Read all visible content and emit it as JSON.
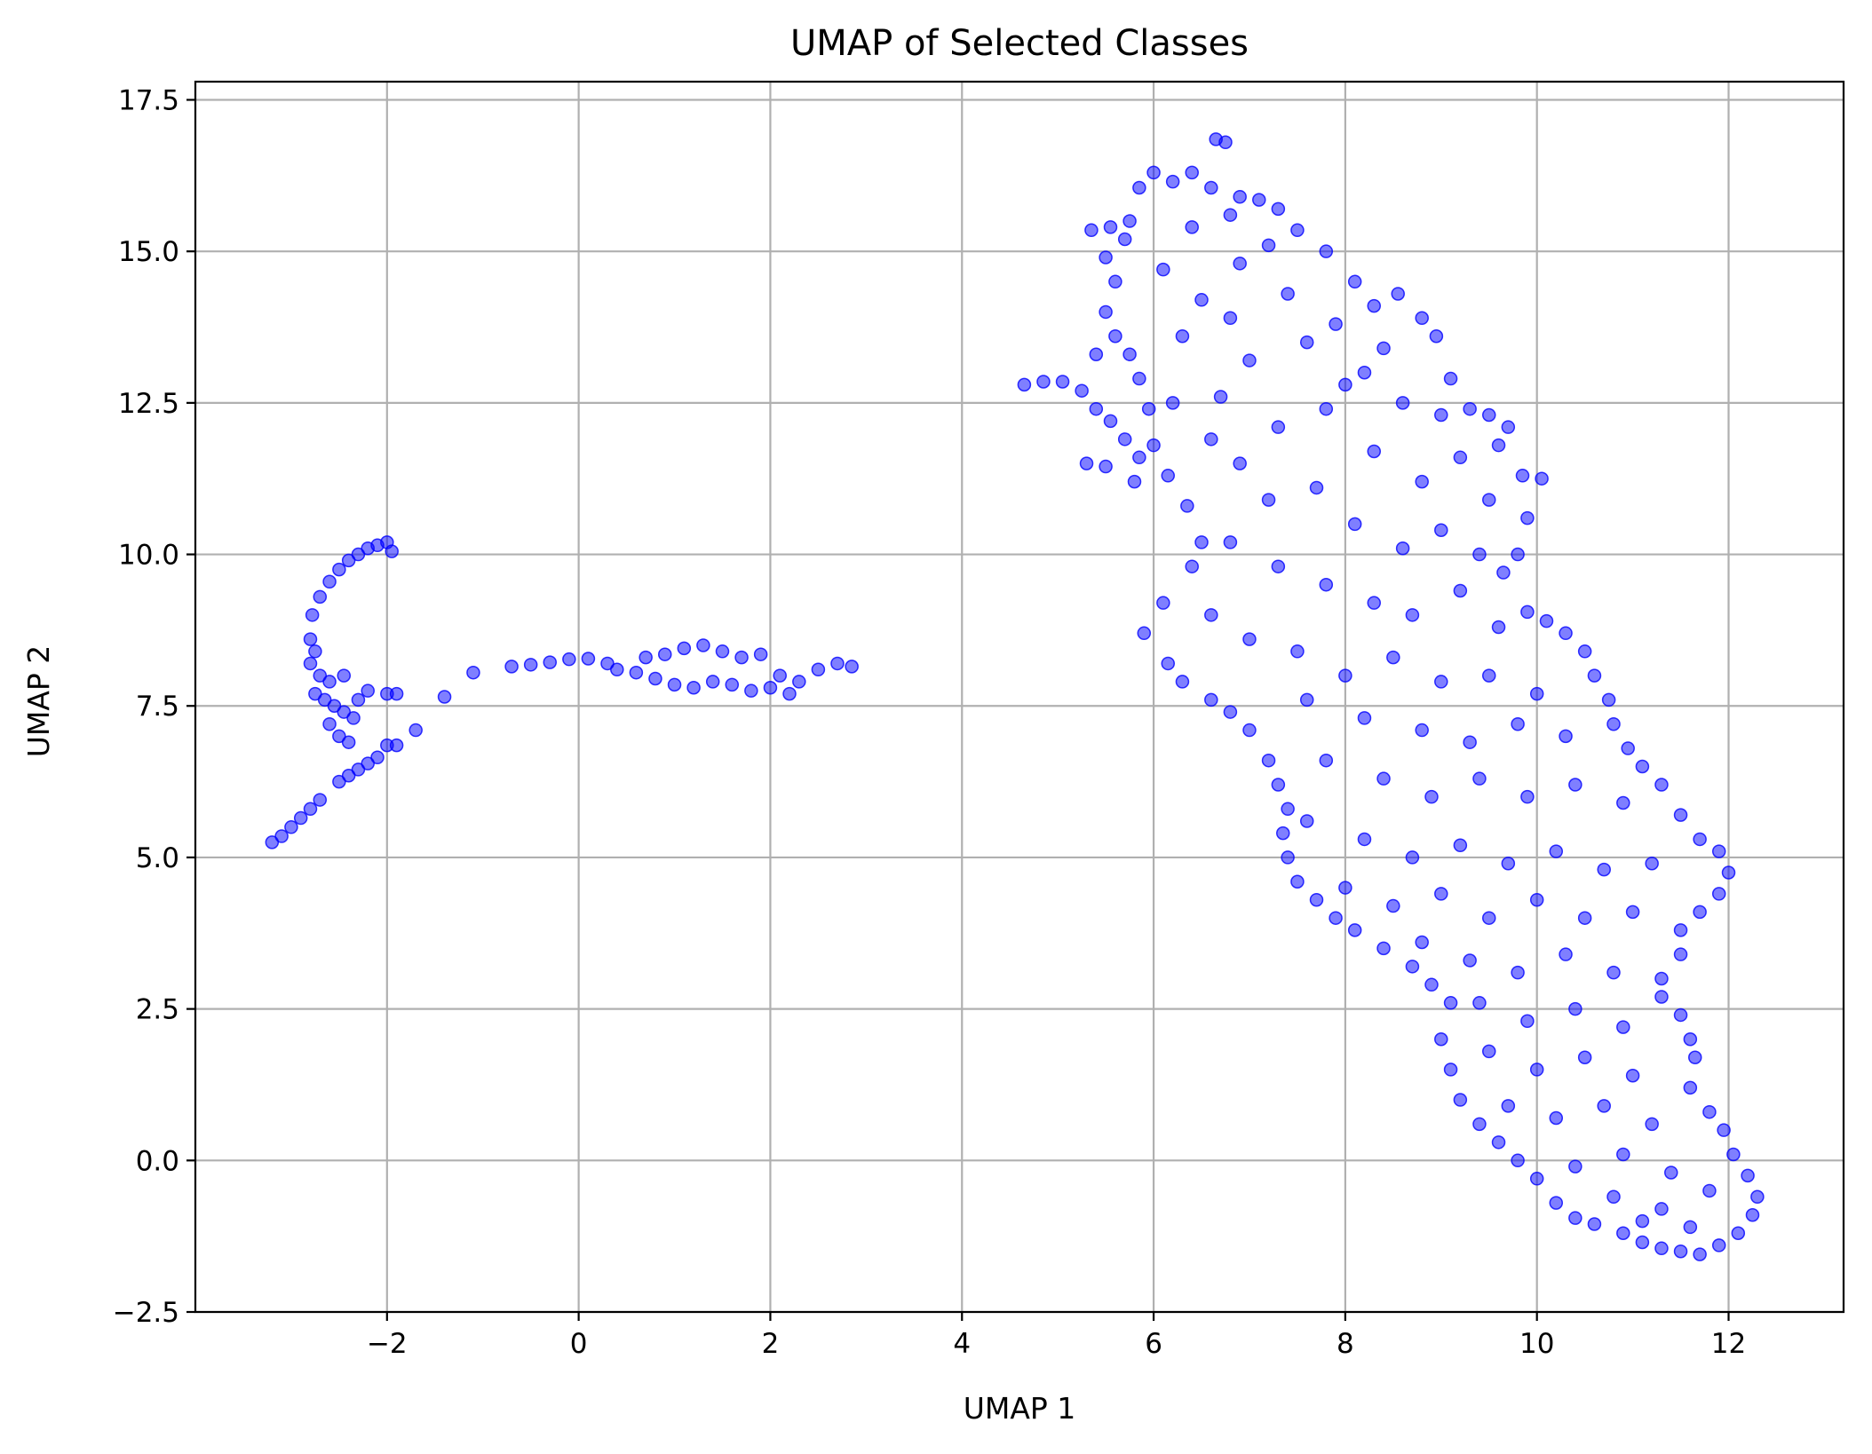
{
  "chart_data": {
    "type": "scatter",
    "title": "UMAP of Selected Classes",
    "xlabel": "UMAP 1",
    "ylabel": "UMAP 2",
    "xlim": [
      -4.0,
      13.2
    ],
    "ylim": [
      -2.5,
      17.8
    ],
    "xticks": [
      -2,
      0,
      2,
      4,
      6,
      8,
      10,
      12
    ],
    "xtick_labels": [
      "−2",
      "0",
      "2",
      "4",
      "6",
      "8",
      "10",
      "12"
    ],
    "yticks": [
      -2.5,
      0.0,
      2.5,
      5.0,
      7.5,
      10.0,
      12.5,
      15.0,
      17.5
    ],
    "ytick_labels": [
      "−2.5",
      "0.0",
      "2.5",
      "5.0",
      "7.5",
      "10.0",
      "12.5",
      "15.0",
      "17.5"
    ],
    "grid": true,
    "marker_color": "#0000ff",
    "marker_alpha": 0.5,
    "series": [
      {
        "points": [
          [
            -3.2,
            5.25
          ],
          [
            -3.1,
            5.35
          ],
          [
            -3.0,
            5.5
          ],
          [
            -2.9,
            5.65
          ],
          [
            -2.8,
            5.8
          ],
          [
            -2.7,
            5.95
          ],
          [
            -2.5,
            6.25
          ],
          [
            -2.4,
            6.35
          ],
          [
            -2.3,
            6.45
          ],
          [
            -2.2,
            6.55
          ],
          [
            -2.1,
            6.65
          ],
          [
            -2.0,
            6.85
          ],
          [
            -1.9,
            6.85
          ],
          [
            -1.7,
            7.1
          ],
          [
            -1.4,
            7.65
          ],
          [
            -1.1,
            8.05
          ],
          [
            -2.75,
            7.7
          ],
          [
            -2.65,
            7.6
          ],
          [
            -2.55,
            7.5
          ],
          [
            -2.45,
            7.4
          ],
          [
            -2.35,
            7.3
          ],
          [
            -2.5,
            7.0
          ],
          [
            -2.6,
            7.2
          ],
          [
            -2.3,
            7.6
          ],
          [
            -2.2,
            7.75
          ],
          [
            -2.0,
            7.7
          ],
          [
            -1.9,
            7.7
          ],
          [
            -2.4,
            6.9
          ],
          [
            -2.8,
            8.2
          ],
          [
            -2.8,
            8.6
          ],
          [
            -2.78,
            9.0
          ],
          [
            -2.7,
            9.3
          ],
          [
            -2.6,
            9.55
          ],
          [
            -2.5,
            9.75
          ],
          [
            -2.4,
            9.9
          ],
          [
            -2.3,
            10.0
          ],
          [
            -2.2,
            10.1
          ],
          [
            -2.1,
            10.15
          ],
          [
            -2.0,
            10.2
          ],
          [
            -1.95,
            10.05
          ],
          [
            -2.7,
            8.0
          ],
          [
            -2.6,
            7.9
          ],
          [
            -2.75,
            8.4
          ],
          [
            -2.45,
            8.0
          ],
          [
            -0.7,
            8.15
          ],
          [
            -0.5,
            8.18
          ],
          [
            -0.3,
            8.22
          ],
          [
            -0.1,
            8.27
          ],
          [
            0.1,
            8.28
          ],
          [
            0.3,
            8.2
          ],
          [
            0.4,
            8.1
          ],
          [
            0.6,
            8.05
          ],
          [
            0.7,
            8.3
          ],
          [
            0.8,
            7.95
          ],
          [
            0.9,
            8.35
          ],
          [
            1.0,
            7.85
          ],
          [
            1.1,
            8.45
          ],
          [
            1.2,
            7.8
          ],
          [
            1.3,
            8.5
          ],
          [
            1.4,
            7.9
          ],
          [
            1.5,
            8.4
          ],
          [
            1.6,
            7.85
          ],
          [
            1.7,
            8.3
          ],
          [
            1.8,
            7.75
          ],
          [
            1.9,
            8.35
          ],
          [
            2.0,
            7.8
          ],
          [
            2.1,
            8.0
          ],
          [
            2.2,
            7.7
          ],
          [
            2.3,
            7.9
          ],
          [
            2.5,
            8.1
          ],
          [
            2.7,
            8.2
          ],
          [
            2.85,
            8.15
          ],
          [
            4.65,
            12.8
          ],
          [
            4.85,
            12.85
          ],
          [
            5.05,
            12.85
          ],
          [
            5.25,
            12.7
          ],
          [
            5.4,
            12.4
          ],
          [
            5.55,
            12.2
          ],
          [
            5.7,
            11.9
          ],
          [
            5.85,
            11.6
          ],
          [
            5.3,
            11.5
          ],
          [
            5.5,
            11.45
          ],
          [
            5.8,
            11.2
          ],
          [
            5.35,
            15.35
          ],
          [
            5.55,
            15.4
          ],
          [
            5.75,
            15.5
          ],
          [
            5.85,
            16.05
          ],
          [
            6.0,
            16.3
          ],
          [
            6.2,
            16.15
          ],
          [
            6.4,
            16.3
          ],
          [
            6.6,
            16.05
          ],
          [
            6.65,
            16.85
          ],
          [
            6.75,
            16.8
          ],
          [
            6.9,
            15.9
          ],
          [
            7.1,
            15.85
          ],
          [
            7.3,
            15.7
          ],
          [
            7.5,
            15.35
          ],
          [
            7.8,
            15.0
          ],
          [
            8.1,
            14.5
          ],
          [
            8.3,
            14.1
          ],
          [
            8.55,
            14.3
          ],
          [
            8.8,
            13.9
          ],
          [
            8.95,
            13.6
          ],
          [
            9.1,
            12.9
          ],
          [
            9.3,
            12.4
          ],
          [
            9.5,
            12.3
          ],
          [
            9.7,
            12.1
          ],
          [
            9.85,
            11.3
          ],
          [
            10.05,
            11.25
          ],
          [
            9.9,
            10.6
          ],
          [
            9.8,
            10.0
          ],
          [
            9.65,
            9.7
          ],
          [
            9.9,
            9.05
          ],
          [
            10.1,
            8.9
          ],
          [
            10.3,
            8.7
          ],
          [
            10.5,
            8.4
          ],
          [
            10.6,
            8.0
          ],
          [
            10.75,
            7.6
          ],
          [
            10.8,
            7.2
          ],
          [
            10.95,
            6.8
          ],
          [
            11.1,
            6.5
          ],
          [
            11.3,
            6.2
          ],
          [
            11.5,
            5.7
          ],
          [
            11.7,
            5.3
          ],
          [
            11.9,
            5.1
          ],
          [
            12.0,
            4.75
          ],
          [
            11.9,
            4.4
          ],
          [
            11.7,
            4.1
          ],
          [
            11.5,
            3.8
          ],
          [
            11.5,
            3.4
          ],
          [
            11.3,
            3.0
          ],
          [
            11.3,
            2.7
          ],
          [
            11.5,
            2.4
          ],
          [
            11.6,
            2.0
          ],
          [
            11.65,
            1.7
          ],
          [
            11.6,
            1.2
          ],
          [
            11.8,
            0.8
          ],
          [
            11.95,
            0.5
          ],
          [
            12.05,
            0.1
          ],
          [
            12.2,
            -0.25
          ],
          [
            12.3,
            -0.6
          ],
          [
            12.25,
            -0.9
          ],
          [
            12.1,
            -1.2
          ],
          [
            11.9,
            -1.4
          ],
          [
            11.7,
            -1.55
          ],
          [
            11.5,
            -1.5
          ],
          [
            11.3,
            -1.45
          ],
          [
            11.1,
            -1.35
          ],
          [
            10.9,
            -1.2
          ],
          [
            10.6,
            -1.05
          ],
          [
            10.4,
            -0.95
          ],
          [
            10.2,
            -0.7
          ],
          [
            10.0,
            -0.3
          ],
          [
            9.8,
            0.0
          ],
          [
            9.6,
            0.3
          ],
          [
            9.4,
            0.6
          ],
          [
            9.2,
            1.0
          ],
          [
            9.1,
            1.5
          ],
          [
            9.0,
            2.0
          ],
          [
            9.1,
            2.6
          ],
          [
            8.9,
            2.9
          ],
          [
            8.7,
            3.2
          ],
          [
            8.4,
            3.5
          ],
          [
            8.1,
            3.8
          ],
          [
            7.9,
            4.0
          ],
          [
            7.7,
            4.3
          ],
          [
            7.5,
            4.6
          ],
          [
            7.4,
            5.0
          ],
          [
            7.35,
            5.4
          ],
          [
            7.4,
            5.8
          ],
          [
            7.3,
            6.2
          ],
          [
            7.2,
            6.6
          ],
          [
            7.0,
            7.1
          ],
          [
            6.8,
            7.4
          ],
          [
            6.6,
            7.6
          ],
          [
            6.3,
            7.9
          ],
          [
            6.15,
            8.2
          ],
          [
            5.9,
            8.7
          ],
          [
            6.1,
            9.2
          ],
          [
            6.4,
            9.8
          ],
          [
            6.5,
            10.2
          ],
          [
            6.35,
            10.8
          ],
          [
            6.15,
            11.3
          ],
          [
            6.0,
            11.8
          ],
          [
            5.95,
            12.4
          ],
          [
            5.85,
            12.9
          ],
          [
            5.75,
            13.3
          ],
          [
            5.6,
            13.6
          ],
          [
            5.4,
            13.3
          ],
          [
            5.5,
            14.0
          ],
          [
            5.6,
            14.5
          ],
          [
            5.5,
            14.9
          ],
          [
            5.7,
            15.2
          ],
          [
            6.1,
            14.7
          ],
          [
            6.5,
            14.2
          ],
          [
            6.9,
            14.8
          ],
          [
            7.4,
            14.3
          ],
          [
            7.9,
            13.8
          ],
          [
            8.2,
            13.0
          ],
          [
            8.6,
            12.5
          ],
          [
            7.0,
            13.2
          ],
          [
            6.7,
            12.6
          ],
          [
            7.3,
            12.1
          ],
          [
            7.8,
            12.4
          ],
          [
            8.3,
            11.7
          ],
          [
            8.8,
            11.2
          ],
          [
            9.2,
            11.6
          ],
          [
            9.5,
            10.9
          ],
          [
            6.9,
            11.5
          ],
          [
            7.2,
            10.9
          ],
          [
            7.7,
            11.1
          ],
          [
            8.1,
            10.5
          ],
          [
            8.6,
            10.1
          ],
          [
            9.0,
            10.4
          ],
          [
            9.4,
            10.0
          ],
          [
            6.8,
            10.2
          ],
          [
            7.3,
            9.8
          ],
          [
            7.8,
            9.5
          ],
          [
            8.3,
            9.2
          ],
          [
            8.7,
            9.0
          ],
          [
            9.2,
            9.4
          ],
          [
            9.6,
            8.8
          ],
          [
            6.6,
            9.0
          ],
          [
            7.0,
            8.6
          ],
          [
            7.5,
            8.4
          ],
          [
            8.0,
            8.0
          ],
          [
            8.5,
            8.3
          ],
          [
            9.0,
            7.9
          ],
          [
            9.5,
            8.0
          ],
          [
            10.0,
            7.7
          ],
          [
            7.6,
            7.6
          ],
          [
            8.2,
            7.3
          ],
          [
            8.8,
            7.1
          ],
          [
            9.3,
            6.9
          ],
          [
            9.8,
            7.2
          ],
          [
            10.3,
            7.0
          ],
          [
            7.8,
            6.6
          ],
          [
            8.4,
            6.3
          ],
          [
            8.9,
            6.0
          ],
          [
            9.4,
            6.3
          ],
          [
            9.9,
            6.0
          ],
          [
            10.4,
            6.2
          ],
          [
            10.9,
            5.9
          ],
          [
            7.6,
            5.6
          ],
          [
            8.2,
            5.3
          ],
          [
            8.7,
            5.0
          ],
          [
            9.2,
            5.2
          ],
          [
            9.7,
            4.9
          ],
          [
            10.2,
            5.1
          ],
          [
            10.7,
            4.8
          ],
          [
            11.2,
            4.9
          ],
          [
            8.0,
            4.5
          ],
          [
            8.5,
            4.2
          ],
          [
            9.0,
            4.4
          ],
          [
            9.5,
            4.0
          ],
          [
            10.0,
            4.3
          ],
          [
            10.5,
            4.0
          ],
          [
            11.0,
            4.1
          ],
          [
            8.8,
            3.6
          ],
          [
            9.3,
            3.3
          ],
          [
            9.8,
            3.1
          ],
          [
            10.3,
            3.4
          ],
          [
            10.8,
            3.1
          ],
          [
            9.4,
            2.6
          ],
          [
            9.9,
            2.3
          ],
          [
            10.4,
            2.5
          ],
          [
            10.9,
            2.2
          ],
          [
            9.5,
            1.8
          ],
          [
            10.0,
            1.5
          ],
          [
            10.5,
            1.7
          ],
          [
            11.0,
            1.4
          ],
          [
            9.7,
            0.9
          ],
          [
            10.2,
            0.7
          ],
          [
            10.7,
            0.9
          ],
          [
            11.2,
            0.6
          ],
          [
            10.4,
            -0.1
          ],
          [
            10.9,
            0.1
          ],
          [
            11.4,
            -0.2
          ],
          [
            10.8,
            -0.6
          ],
          [
            11.3,
            -0.8
          ],
          [
            11.8,
            -0.5
          ],
          [
            11.6,
            -1.1
          ],
          [
            11.1,
            -1.0
          ],
          [
            6.4,
            15.4
          ],
          [
            6.8,
            15.6
          ],
          [
            7.2,
            15.1
          ],
          [
            6.3,
            13.6
          ],
          [
            6.8,
            13.9
          ],
          [
            7.6,
            13.5
          ],
          [
            8.0,
            12.8
          ],
          [
            8.4,
            13.4
          ],
          [
            9.0,
            12.3
          ],
          [
            9.6,
            11.8
          ],
          [
            6.2,
            12.5
          ],
          [
            6.6,
            11.9
          ]
        ]
      }
    ]
  }
}
